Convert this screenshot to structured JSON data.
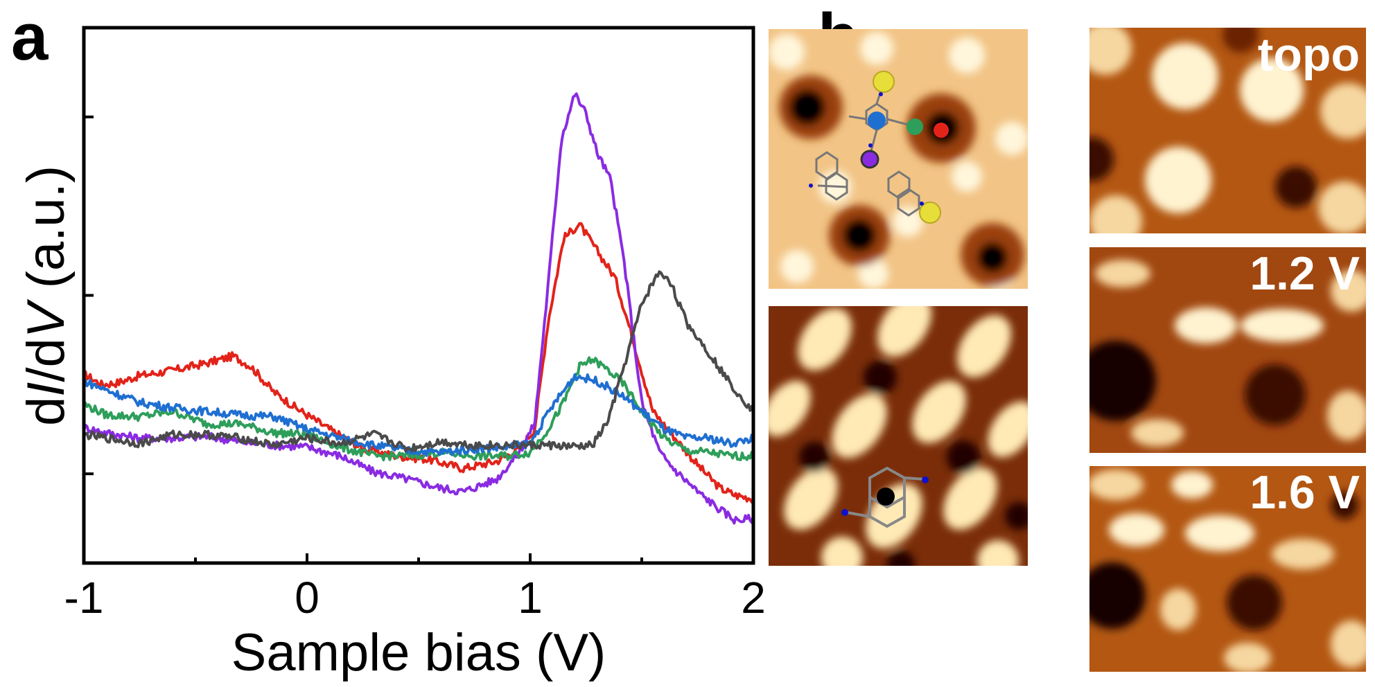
{
  "panels": {
    "a": "a",
    "b": "b"
  },
  "chart_data": {
    "type": "line",
    "title": "",
    "xlabel": "Sample bias (V)",
    "ylabel": "dI/dV (a.u.)",
    "xlim": [
      -1,
      2
    ],
    "xticks": [
      "-1",
      "0",
      "1",
      "2"
    ],
    "x_minor_ticks": [
      -0.5,
      0.5,
      1.5
    ],
    "y_ticks_shown": 3,
    "yticklabels_shown": false,
    "legend": "none",
    "grid": false,
    "series": [
      {
        "color": "#e2231a",
        "points": [
          [
            -1.0,
            0.56
          ],
          [
            -0.92,
            0.5
          ],
          [
            -0.85,
            0.51
          ],
          [
            -0.75,
            0.55
          ],
          [
            -0.6,
            0.58
          ],
          [
            -0.45,
            0.62
          ],
          [
            -0.33,
            0.66
          ],
          [
            -0.25,
            0.6
          ],
          [
            -0.15,
            0.46
          ],
          [
            -0.05,
            0.37
          ],
          [
            0.1,
            0.25
          ],
          [
            0.25,
            0.14
          ],
          [
            0.4,
            0.1
          ],
          [
            0.55,
            0.08
          ],
          [
            0.7,
            0.03
          ],
          [
            0.85,
            0.07
          ],
          [
            0.95,
            0.14
          ],
          [
            1.02,
            0.25
          ],
          [
            1.08,
            0.85
          ],
          [
            1.15,
            1.32
          ],
          [
            1.22,
            1.4
          ],
          [
            1.3,
            1.25
          ],
          [
            1.38,
            1.1
          ],
          [
            1.45,
            0.8
          ],
          [
            1.55,
            0.35
          ],
          [
            1.65,
            0.2
          ],
          [
            1.75,
            0.05
          ],
          [
            1.85,
            -0.08
          ],
          [
            1.92,
            -0.12
          ],
          [
            2.0,
            -0.14
          ]
        ]
      },
      {
        "color": "#8a2be2",
        "points": [
          [
            -1.0,
            0.26
          ],
          [
            -0.9,
            0.23
          ],
          [
            -0.75,
            0.2
          ],
          [
            -0.6,
            0.2
          ],
          [
            -0.45,
            0.21
          ],
          [
            -0.3,
            0.18
          ],
          [
            -0.15,
            0.16
          ],
          [
            0.0,
            0.15
          ],
          [
            0.15,
            0.1
          ],
          [
            0.3,
            0.01
          ],
          [
            0.45,
            -0.03
          ],
          [
            0.6,
            -0.08
          ],
          [
            0.7,
            -0.1
          ],
          [
            0.85,
            -0.03
          ],
          [
            0.95,
            0.12
          ],
          [
            1.02,
            0.28
          ],
          [
            1.08,
            1.05
          ],
          [
            1.14,
            1.88
          ],
          [
            1.2,
            2.13
          ],
          [
            1.25,
            2.02
          ],
          [
            1.3,
            1.8
          ],
          [
            1.36,
            1.65
          ],
          [
            1.42,
            1.2
          ],
          [
            1.5,
            0.4
          ],
          [
            1.58,
            0.12
          ],
          [
            1.65,
            0.02
          ],
          [
            1.75,
            -0.1
          ],
          [
            1.85,
            -0.2
          ],
          [
            1.92,
            -0.26
          ],
          [
            2.0,
            -0.25
          ]
        ]
      },
      {
        "color": "#2e9e5b",
        "points": [
          [
            -1.0,
            0.39
          ],
          [
            -0.9,
            0.33
          ],
          [
            -0.75,
            0.32
          ],
          [
            -0.6,
            0.35
          ],
          [
            -0.45,
            0.28
          ],
          [
            -0.3,
            0.28
          ],
          [
            -0.15,
            0.23
          ],
          [
            0.0,
            0.22
          ],
          [
            0.15,
            0.15
          ],
          [
            0.3,
            0.1
          ],
          [
            0.45,
            0.1
          ],
          [
            0.6,
            0.12
          ],
          [
            0.75,
            0.1
          ],
          [
            0.9,
            0.1
          ],
          [
            1.0,
            0.12
          ],
          [
            1.08,
            0.25
          ],
          [
            1.15,
            0.4
          ],
          [
            1.22,
            0.6
          ],
          [
            1.28,
            0.64
          ],
          [
            1.35,
            0.58
          ],
          [
            1.42,
            0.5
          ],
          [
            1.5,
            0.35
          ],
          [
            1.6,
            0.2
          ],
          [
            1.7,
            0.13
          ],
          [
            1.8,
            0.12
          ],
          [
            1.9,
            0.1
          ],
          [
            2.0,
            0.1
          ]
        ]
      },
      {
        "color": "#1f6fd1",
        "points": [
          [
            -1.0,
            0.52
          ],
          [
            -0.9,
            0.47
          ],
          [
            -0.75,
            0.4
          ],
          [
            -0.6,
            0.37
          ],
          [
            -0.45,
            0.35
          ],
          [
            -0.3,
            0.33
          ],
          [
            -0.15,
            0.32
          ],
          [
            0.0,
            0.25
          ],
          [
            0.15,
            0.2
          ],
          [
            0.3,
            0.16
          ],
          [
            0.45,
            0.13
          ],
          [
            0.6,
            0.12
          ],
          [
            0.75,
            0.14
          ],
          [
            0.9,
            0.15
          ],
          [
            1.0,
            0.17
          ],
          [
            1.1,
            0.38
          ],
          [
            1.2,
            0.55
          ],
          [
            1.3,
            0.52
          ],
          [
            1.4,
            0.45
          ],
          [
            1.5,
            0.35
          ],
          [
            1.6,
            0.25
          ],
          [
            1.7,
            0.2
          ],
          [
            1.8,
            0.2
          ],
          [
            1.9,
            0.17
          ],
          [
            2.0,
            0.2
          ]
        ]
      },
      {
        "color": "#4a4a4a",
        "points": [
          [
            -1.0,
            0.22
          ],
          [
            -0.9,
            0.2
          ],
          [
            -0.75,
            0.17
          ],
          [
            -0.6,
            0.22
          ],
          [
            -0.45,
            0.22
          ],
          [
            -0.3,
            0.2
          ],
          [
            -0.15,
            0.16
          ],
          [
            0.0,
            0.2
          ],
          [
            0.15,
            0.17
          ],
          [
            0.3,
            0.22
          ],
          [
            0.45,
            0.14
          ],
          [
            0.6,
            0.18
          ],
          [
            0.75,
            0.16
          ],
          [
            0.9,
            0.16
          ],
          [
            1.0,
            0.16
          ],
          [
            1.1,
            0.16
          ],
          [
            1.2,
            0.15
          ],
          [
            1.28,
            0.16
          ],
          [
            1.35,
            0.3
          ],
          [
            1.42,
            0.6
          ],
          [
            1.5,
            0.95
          ],
          [
            1.57,
            1.12
          ],
          [
            1.62,
            1.1
          ],
          [
            1.7,
            0.85
          ],
          [
            1.8,
            0.68
          ],
          [
            1.9,
            0.5
          ],
          [
            2.0,
            0.35
          ]
        ]
      }
    ],
    "y_range": [
      -0.5,
      2.5
    ],
    "yticks_at": [
      0.0,
      1.0,
      2.0
    ]
  },
  "images": {
    "b_labels": [
      "topo",
      "1.2 V",
      "1.6 V"
    ],
    "a_marker_colors": [
      "#1f6fd1",
      "#2e9e5b",
      "#e2231a",
      "#8a2be2"
    ],
    "palette": {
      "dark": "#120200",
      "mid": "#a8480f",
      "light": "#fff3d0"
    }
  }
}
